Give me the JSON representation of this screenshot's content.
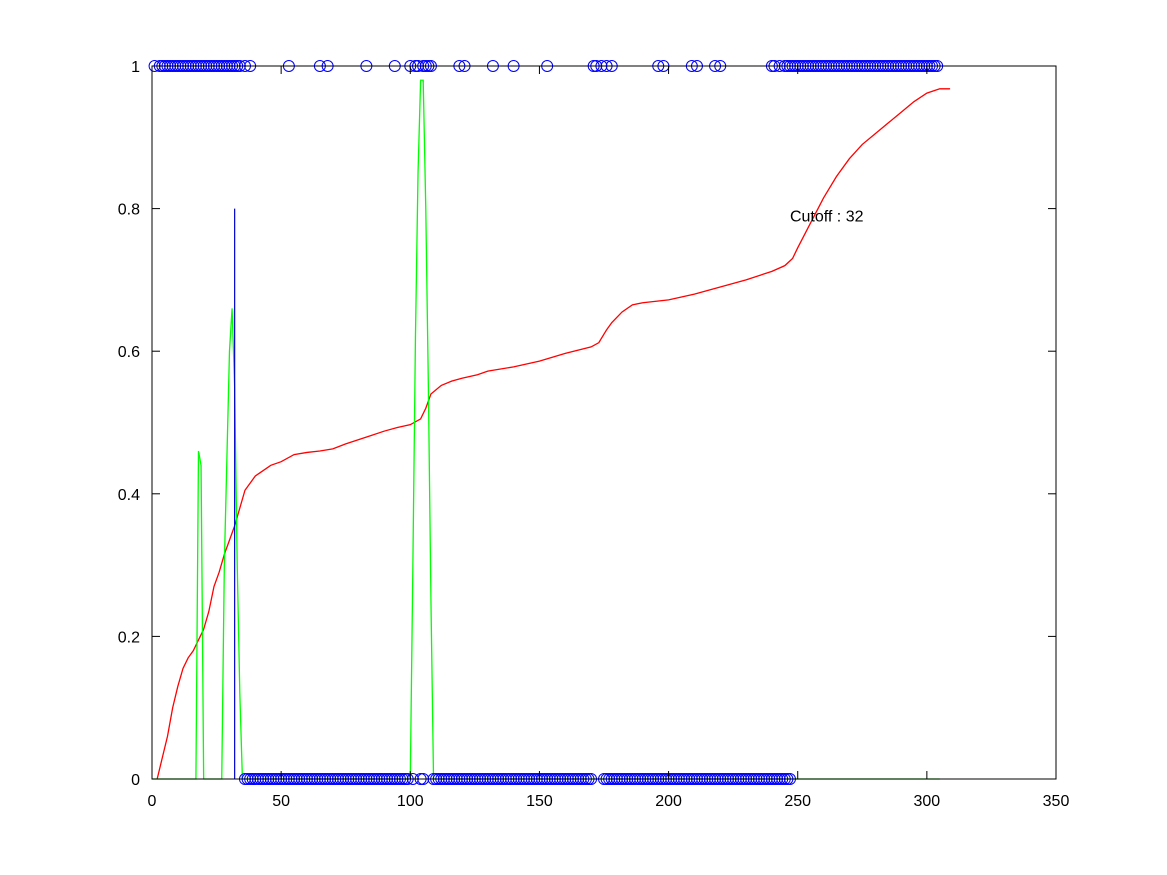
{
  "chart_data": {
    "type": "line",
    "title": "",
    "xlabel": "",
    "ylabel": "",
    "xlim": [
      0,
      350
    ],
    "ylim": [
      0,
      1
    ],
    "x_ticks": [
      0,
      50,
      100,
      150,
      200,
      250,
      300,
      350
    ],
    "y_ticks": [
      0,
      0.2,
      0.4,
      0.6,
      0.8,
      1
    ],
    "x_tick_labels": [
      "0",
      "50",
      "100",
      "150",
      "200",
      "250",
      "300",
      "350"
    ],
    "y_tick_labels": [
      "0",
      "0.2",
      "0.4",
      "0.6",
      "0.8",
      "1"
    ],
    "grid": false,
    "annotation": {
      "text": "Cutoff : 32",
      "x": 247,
      "y": 0.79
    },
    "colors": {
      "cumulative": "#ff0000",
      "green": "#00ff00",
      "cutoff": "#0000cc",
      "markers": "#0000ff"
    },
    "series": [
      {
        "type": "line",
        "color": "#ff0000",
        "x": [
          2,
          4,
          6,
          8,
          10,
          12,
          14,
          16,
          18,
          20,
          22,
          24,
          26,
          28,
          30,
          32,
          34,
          36,
          38,
          40,
          42,
          46,
          50,
          55,
          60,
          65,
          70,
          75,
          80,
          85,
          90,
          95,
          100,
          104,
          106,
          108,
          112,
          116,
          120,
          126,
          130,
          140,
          150,
          160,
          170,
          173,
          176,
          178,
          182,
          186,
          190,
          200,
          210,
          220,
          230,
          240,
          245,
          248,
          250,
          255,
          260,
          265,
          270,
          275,
          280,
          285,
          290,
          295,
          300,
          305,
          309
        ],
        "y": [
          0.0,
          0.03,
          0.06,
          0.1,
          0.13,
          0.155,
          0.17,
          0.18,
          0.195,
          0.21,
          0.235,
          0.27,
          0.29,
          0.315,
          0.335,
          0.355,
          0.38,
          0.405,
          0.415,
          0.425,
          0.43,
          0.44,
          0.445,
          0.455,
          0.458,
          0.46,
          0.463,
          0.47,
          0.476,
          0.482,
          0.488,
          0.493,
          0.497,
          0.505,
          0.52,
          0.54,
          0.552,
          0.558,
          0.562,
          0.567,
          0.572,
          0.578,
          0.586,
          0.597,
          0.606,
          0.612,
          0.63,
          0.64,
          0.655,
          0.665,
          0.668,
          0.672,
          0.68,
          0.69,
          0.7,
          0.712,
          0.72,
          0.73,
          0.745,
          0.78,
          0.815,
          0.845,
          0.87,
          0.89,
          0.905,
          0.92,
          0.935,
          0.95,
          0.962,
          0.968,
          0.968
        ]
      },
      {
        "type": "line",
        "color": "#00ff00",
        "x": [
          0,
          17,
          18,
          19,
          20,
          27,
          28,
          29,
          30,
          31,
          32,
          33,
          34,
          35,
          100,
          101,
          102,
          103,
          104,
          105,
          106,
          107,
          108,
          109,
          305
        ],
        "y": [
          0,
          0,
          0.46,
          0.44,
          0,
          0,
          0.3,
          0.45,
          0.6,
          0.66,
          0.55,
          0.3,
          0.12,
          0,
          0,
          0.3,
          0.62,
          0.85,
          0.98,
          0.98,
          0.8,
          0.55,
          0.25,
          0,
          0
        ]
      },
      {
        "type": "stem",
        "color": "#0000cc",
        "x": [
          32
        ],
        "y": [
          0.8
        ]
      },
      {
        "type": "scatter",
        "marker": "circle",
        "color": "#0000ff",
        "y": 1,
        "x": [
          1,
          3,
          4,
          5,
          6,
          7,
          8,
          9,
          10,
          11,
          12,
          13,
          14,
          15,
          16,
          17,
          18,
          19,
          20,
          21,
          22,
          23,
          24,
          25,
          26,
          27,
          28,
          29,
          30,
          31,
          32,
          33,
          34,
          36,
          38,
          53,
          65,
          68,
          83,
          94,
          100,
          102,
          103,
          105,
          106,
          107,
          108,
          119,
          121,
          132,
          140,
          153,
          171,
          172,
          174,
          176,
          178,
          196,
          198,
          209,
          211,
          218,
          220,
          240,
          241,
          243,
          245,
          246,
          247,
          248,
          249,
          250,
          251,
          252,
          253,
          254,
          255,
          256,
          257,
          258,
          259,
          260,
          261,
          262,
          263,
          264,
          265,
          266,
          267,
          268,
          269,
          270,
          271,
          272,
          273,
          274,
          275,
          276,
          277,
          278,
          279,
          280,
          281,
          282,
          283,
          284,
          285,
          286,
          287,
          288,
          289,
          290,
          291,
          292,
          293,
          294,
          295,
          296,
          297,
          298,
          299,
          300,
          301,
          302,
          303,
          304
        ]
      },
      {
        "type": "scatter",
        "marker": "circle",
        "color": "#0000ff",
        "y": 0,
        "x": [
          36,
          37,
          38,
          39,
          40,
          41,
          42,
          43,
          44,
          45,
          46,
          47,
          48,
          49,
          50,
          51,
          52,
          53,
          54,
          55,
          56,
          57,
          58,
          59,
          60,
          61,
          62,
          63,
          64,
          65,
          66,
          67,
          68,
          69,
          70,
          71,
          72,
          73,
          74,
          75,
          76,
          77,
          78,
          79,
          80,
          81,
          82,
          83,
          84,
          85,
          86,
          87,
          88,
          89,
          90,
          91,
          92,
          93,
          94,
          95,
          96,
          97,
          98,
          99,
          101,
          104,
          105,
          109,
          110,
          111,
          112,
          113,
          114,
          115,
          116,
          117,
          118,
          119,
          120,
          121,
          122,
          123,
          124,
          125,
          126,
          127,
          128,
          129,
          130,
          131,
          132,
          133,
          134,
          135,
          136,
          137,
          138,
          139,
          140,
          141,
          142,
          143,
          144,
          145,
          146,
          147,
          148,
          149,
          150,
          151,
          152,
          153,
          154,
          155,
          156,
          157,
          158,
          159,
          160,
          161,
          162,
          163,
          164,
          165,
          166,
          167,
          168,
          169,
          170,
          175,
          176,
          177,
          178,
          179,
          180,
          181,
          182,
          183,
          184,
          185,
          186,
          187,
          188,
          189,
          190,
          191,
          192,
          193,
          194,
          195,
          196,
          197,
          198,
          199,
          200,
          201,
          202,
          203,
          204,
          205,
          206,
          207,
          208,
          209,
          210,
          211,
          212,
          213,
          214,
          215,
          216,
          217,
          218,
          219,
          220,
          221,
          222,
          223,
          224,
          225,
          226,
          227,
          228,
          229,
          230,
          231,
          232,
          233,
          234,
          235,
          236,
          237,
          238,
          239,
          240,
          241,
          242,
          243,
          244,
          245,
          246,
          247
        ]
      }
    ]
  }
}
